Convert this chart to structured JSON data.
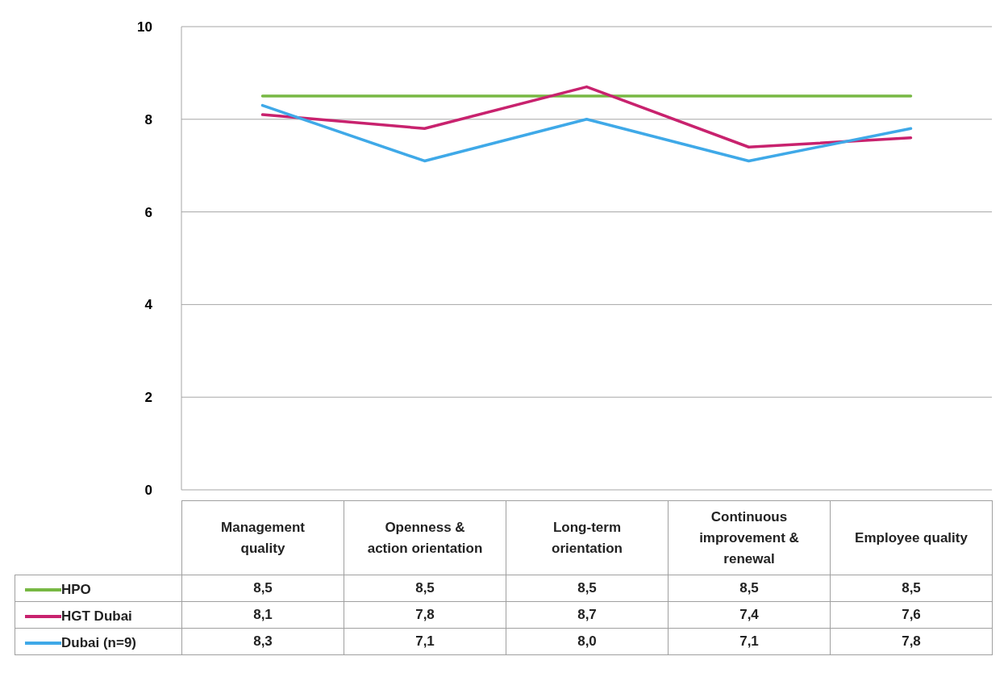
{
  "chart_data": {
    "type": "line",
    "categories": [
      "Management quality",
      "Openness & action orientation",
      "Long-term orientation",
      "Continuous improvement & renewal",
      "Employee quality"
    ],
    "series": [
      {
        "name": "HPO",
        "color": "#77b843",
        "values": [
          8.5,
          8.5,
          8.5,
          8.5,
          8.5
        ],
        "value_labels": [
          "8,5",
          "8,5",
          "8,5",
          "8,5",
          "8,5"
        ]
      },
      {
        "name": "HGT Dubai",
        "color": "#c8226e",
        "values": [
          8.1,
          7.8,
          8.7,
          7.4,
          7.6
        ],
        "value_labels": [
          "8,1",
          "7,8",
          "8,7",
          "7,4",
          "7,6"
        ]
      },
      {
        "name": "Dubai (n=9)",
        "color": "#3fa9e8",
        "values": [
          8.3,
          7.1,
          8.0,
          7.1,
          7.8
        ],
        "value_labels": [
          "8,3",
          "7,1",
          "8,0",
          "7,1",
          "7,8"
        ]
      }
    ],
    "ylim": [
      0,
      10
    ],
    "yticks": [
      0,
      2,
      4,
      6,
      8,
      10
    ],
    "grid": "y",
    "legend": "bottom",
    "marker": "none",
    "line_style": "solid"
  }
}
